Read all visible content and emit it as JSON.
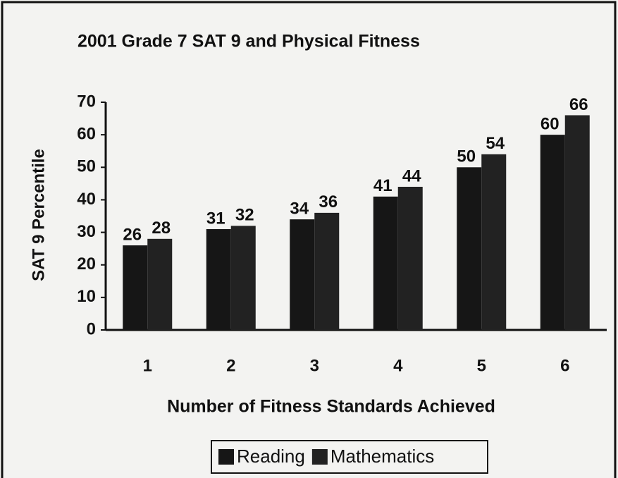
{
  "chart_data": {
    "type": "bar",
    "title": "2001 Grade 7 SAT 9 and Physical Fitness",
    "x_label": "Number of  Fitness Standards Achieved",
    "y_label": "SAT 9 Percentile",
    "categories": [
      "1",
      "2",
      "3",
      "4",
      "5",
      "6"
    ],
    "series": [
      {
        "name": "Reading",
        "color": "#161616",
        "values": [
          26,
          31,
          34,
          41,
          50,
          60
        ]
      },
      {
        "name": "Mathematics",
        "color": "#222222",
        "values": [
          28,
          32,
          36,
          44,
          54,
          66
        ]
      }
    ],
    "ylim": [
      0,
      70
    ],
    "yticks": [
      0,
      10,
      20,
      30,
      40,
      50,
      60,
      70
    ],
    "legend": "bottom"
  }
}
